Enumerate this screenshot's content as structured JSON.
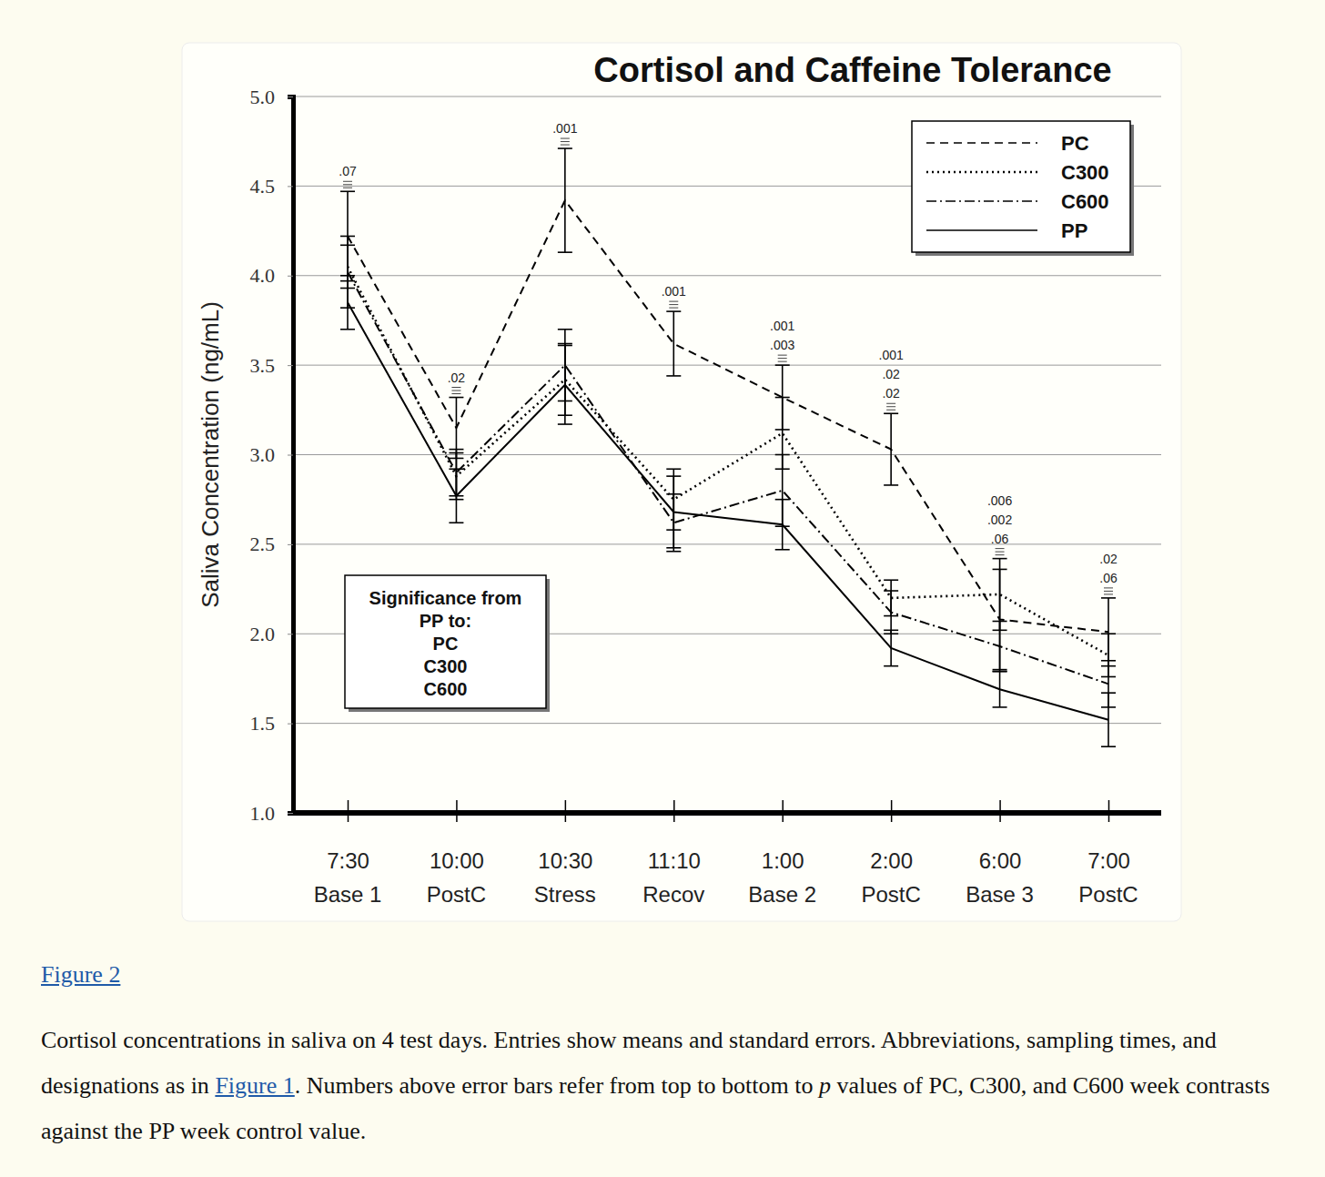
{
  "chart_data": {
    "type": "line",
    "title": "Cortisol and Caffeine Tolerance",
    "y_label": "Saliva Concentration (ng/mL)",
    "categories": [
      "7:30",
      "10:00",
      "10:30",
      "11:10",
      "1:00",
      "2:00",
      "6:00",
      "7:00"
    ],
    "phases": [
      "Base 1",
      "PostC",
      "Stress",
      "Recov",
      "Base 2",
      "PostC",
      "Base 3",
      "PostC"
    ],
    "ylim": [
      1,
      5
    ],
    "yticks": [
      {
        "value": 1,
        "label": "1.0"
      },
      1.5,
      {
        "value": 2,
        "label": "2.0"
      },
      2.5,
      {
        "value": 3,
        "label": "3.0"
      },
      3.5,
      {
        "value": 4,
        "label": "4.0"
      },
      4.5,
      {
        "value": 5,
        "label": "5.0"
      }
    ],
    "grid": true,
    "legend": "top-right",
    "series": [
      {
        "name": "PC",
        "color": "#000000",
        "line_style": "dashed",
        "values": [
          4.22,
          3.15,
          4.42,
          3.62,
          3.32,
          3.03,
          2.08,
          2.01
        ],
        "errors": [
          0.25,
          0.17,
          0.29,
          0.18,
          0.18,
          0.2,
          0.28,
          0.19
        ]
      },
      {
        "name": "C300",
        "color": "#000000",
        "line_style": "dotted",
        "values": [
          4.05,
          2.88,
          3.42,
          2.75,
          3.12,
          2.2,
          2.22,
          1.88
        ],
        "errors": [
          0.12,
          0.13,
          0.2,
          0.17,
          0.2,
          0.1,
          0.2,
          0.12
        ]
      },
      {
        "name": "C600",
        "color": "#000000",
        "line_style": "dashdot",
        "values": [
          4.02,
          2.9,
          3.5,
          2.62,
          2.8,
          2.12,
          1.93,
          1.72
        ],
        "errors": [
          0.2,
          0.13,
          0.2,
          0.16,
          0.2,
          0.12,
          0.14,
          0.13
        ]
      },
      {
        "name": "PP",
        "color": "#000000",
        "line_style": "solid",
        "values": [
          3.85,
          2.77,
          3.39,
          2.68,
          2.61,
          1.92,
          1.69,
          1.52
        ],
        "errors": [
          0.15,
          0.15,
          0.22,
          0.2,
          0.14,
          0.1,
          0.1,
          0.15
        ]
      }
    ],
    "p_values": [
      [
        ".07"
      ],
      [
        ".02"
      ],
      [
        ".001"
      ],
      [
        ".001"
      ],
      [
        ".001",
        ".003"
      ],
      [
        ".001",
        ".02",
        ".02"
      ],
      [
        ".006",
        ".002",
        ".06"
      ],
      [
        ".02",
        ".06"
      ]
    ],
    "significance_box": [
      "Significance from",
      "PP to:",
      "PC",
      "C300",
      "C600"
    ]
  },
  "caption": {
    "figure_label": "Figure 2",
    "parts": [
      {
        "text": "Cortisol concentrations in saliva on 4 test days. Entries show means and standard errors. Abbreviations, sampling times, and designations as in "
      },
      {
        "text": "Figure 1",
        "link": true
      },
      {
        "text": ". Numbers above error bars refer from top to bottom to "
      },
      {
        "text": "p",
        "italic": true
      },
      {
        "text": " values of PC, C300, and C600 week contrasts against the PP week control value."
      }
    ]
  }
}
